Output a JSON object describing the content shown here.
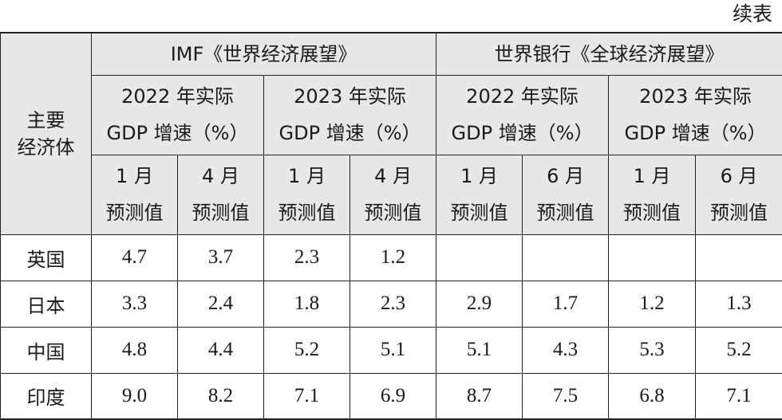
{
  "caption": "续表",
  "corner": {
    "line1": "主要",
    "line2": "经济体"
  },
  "groups": [
    {
      "label": "IMF《世界经济展望》"
    },
    {
      "label": "世界银行《全球经济展望》"
    }
  ],
  "subgroups": [
    {
      "line1": "2022 年实际",
      "line2": "GDP 增速（%）"
    },
    {
      "line1": "2023 年实际",
      "line2": "GDP 增速（%）"
    },
    {
      "line1": "2022 年实际",
      "line2": "GDP 增速（%）"
    },
    {
      "line1": "2023 年实际",
      "line2": "GDP 增速（%）"
    }
  ],
  "columns": [
    {
      "line1": "1 月",
      "line2": "预测值"
    },
    {
      "line1": "4 月",
      "line2": "预测值"
    },
    {
      "line1": "1 月",
      "line2": "预测值"
    },
    {
      "line1": "4 月",
      "line2": "预测值"
    },
    {
      "line1": "1 月",
      "line2": "预测值"
    },
    {
      "line1": "6 月",
      "line2": "预测值"
    },
    {
      "line1": "1 月",
      "line2": "预测值"
    },
    {
      "line1": "6 月",
      "line2": "预测值"
    }
  ],
  "rows": [
    {
      "name": "英国",
      "values": [
        "4.7",
        "3.7",
        "2.3",
        "1.2",
        "",
        "",
        "",
        ""
      ]
    },
    {
      "name": "日本",
      "values": [
        "3.3",
        "2.4",
        "1.8",
        "2.3",
        "2.9",
        "1.7",
        "1.2",
        "1.3"
      ]
    },
    {
      "name": "中国",
      "values": [
        "4.8",
        "4.4",
        "5.2",
        "5.1",
        "5.1",
        "4.3",
        "5.3",
        "5.2"
      ]
    },
    {
      "name": "印度",
      "values": [
        "9.0",
        "8.2",
        "7.1",
        "6.9",
        "8.7",
        "7.5",
        "6.8",
        "7.1"
      ]
    }
  ]
}
